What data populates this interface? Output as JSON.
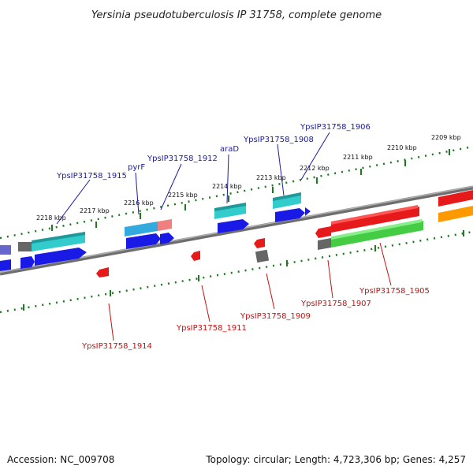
{
  "title": "Yersinia pseudotuberculosis IP 31758, complete genome",
  "footer": {
    "accession": "Accession: NC_009708",
    "topology": "Topology: circular; Length: 4,723,306 bp; Genes: 4,257"
  },
  "colors": {
    "backbone": "#888888",
    "ticks": "#1f7a1f",
    "forward_label": "#1a1aa8",
    "reverse_label": "#c81010",
    "cyan": "#33cccc",
    "blue": "#1a1ae6",
    "red": "#e61a1a",
    "green": "#44cc44",
    "orange": "#ff9900",
    "grey": "#666666",
    "pink": "#f08080",
    "lightblue": "#33aadd",
    "slate": "#6666cc"
  },
  "ticks": [
    "2209 kbp",
    "2210 kbp",
    "2211 kbp",
    "2212 kbp",
    "2213 kbp",
    "2214 kbp",
    "2215 kbp",
    "2216 kbp",
    "2217 kbp",
    "2218 kbp"
  ],
  "forward_genes": [
    "YpsIP31758_1906",
    "YpsIP31758_1908",
    "araD",
    "YpsIP31758_1912",
    "pyrF",
    "YpsIP31758_1915"
  ],
  "reverse_genes": [
    "YpsIP31758_1905",
    "YpsIP31758_1907",
    "YpsIP31758_1909",
    "YpsIP31758_1911",
    "YpsIP31758_1914"
  ]
}
